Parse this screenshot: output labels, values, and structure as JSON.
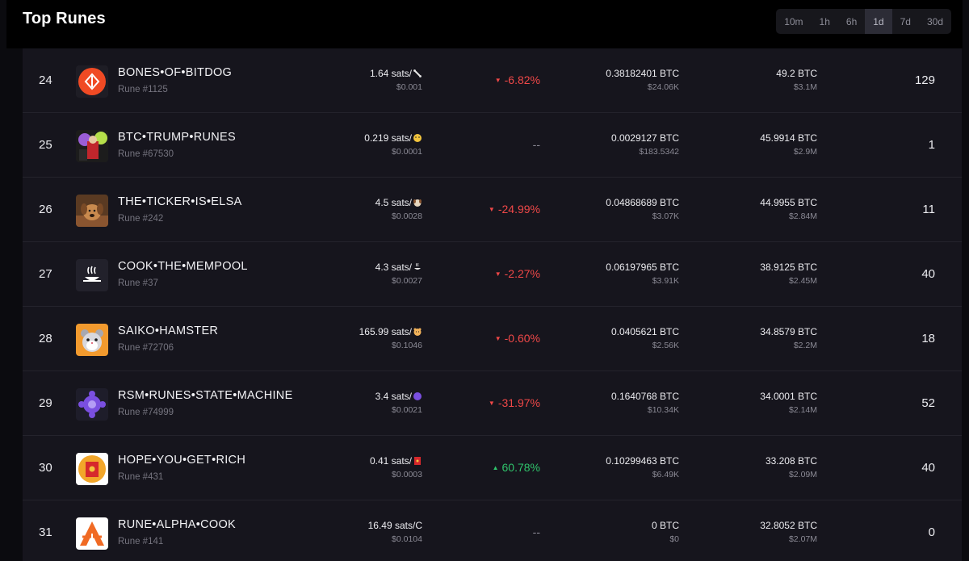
{
  "header": {
    "title": "Top Runes",
    "timeframes": [
      "10m",
      "1h",
      "6h",
      "1d",
      "7d",
      "30d"
    ],
    "active_timeframe": "1d"
  },
  "rows": [
    {
      "rank": "24",
      "name": "BONES•OF•BITDOG",
      "rune_id": "Rune #1125",
      "price": "1.64 sats/",
      "price_symbol": "bone-icon",
      "price_usd": "$0.001",
      "change": "-6.82%",
      "change_dir": "down",
      "volume": "0.38182401 BTC",
      "volume_usd": "$24.06K",
      "mcap": "49.2 BTC",
      "mcap_usd": "$3.1M",
      "sales": "129",
      "logo": "bones-of-bitdog-logo"
    },
    {
      "rank": "25",
      "name": "BTC•TRUMP•RUNES",
      "rune_id": "Rune #67530",
      "price": "0.219 sats/",
      "price_symbol": "face-emoji-icon",
      "price_usd": "$0.0001",
      "change": "--",
      "change_dir": "flat",
      "volume": "0.0029127 BTC",
      "volume_usd": "$183.5342",
      "mcap": "45.9914 BTC",
      "mcap_usd": "$2.9M",
      "sales": "1",
      "logo": "btc-trump-runes-logo"
    },
    {
      "rank": "26",
      "name": "THE•TICKER•IS•ELSA",
      "rune_id": "Rune #242",
      "price": "4.5 sats/",
      "price_symbol": "dog-emoji-icon",
      "price_usd": "$0.0028",
      "change": "-24.99%",
      "change_dir": "down",
      "volume": "0.04868689 BTC",
      "volume_usd": "$3.07K",
      "mcap": "44.9955 BTC",
      "mcap_usd": "$2.84M",
      "sales": "11",
      "logo": "the-ticker-is-elsa-logo"
    },
    {
      "rank": "27",
      "name": "COOK•THE•MEMPOOL",
      "rune_id": "Rune #37",
      "price": "4.3 sats/",
      "price_symbol": "pot-icon",
      "price_usd": "$0.0027",
      "change": "-2.27%",
      "change_dir": "down",
      "volume": "0.06197965 BTC",
      "volume_usd": "$3.91K",
      "mcap": "38.9125 BTC",
      "mcap_usd": "$2.45M",
      "sales": "40",
      "logo": "cook-the-mempool-logo"
    },
    {
      "rank": "28",
      "name": "SAIKO•HAMSTER",
      "rune_id": "Rune #72706",
      "price": "165.99 sats/",
      "price_symbol": "hamster-emoji-icon",
      "price_usd": "$0.1046",
      "change": "-0.60%",
      "change_dir": "down",
      "volume": "0.0405621 BTC",
      "volume_usd": "$2.56K",
      "mcap": "34.8579 BTC",
      "mcap_usd": "$2.2M",
      "sales": "18",
      "logo": "saiko-hamster-logo"
    },
    {
      "rank": "29",
      "name": "RSM•RUNES•STATE•MACHINE",
      "rune_id": "Rune #74999",
      "price": "3.4 sats/",
      "price_symbol": "purple-circle-icon",
      "price_usd": "$0.0021",
      "change": "-31.97%",
      "change_dir": "down",
      "volume": "0.1640768 BTC",
      "volume_usd": "$10.34K",
      "mcap": "34.0001 BTC",
      "mcap_usd": "$2.14M",
      "sales": "52",
      "logo": "rsm-runes-state-machine-logo"
    },
    {
      "rank": "30",
      "name": "HOPE•YOU•GET•RICH",
      "rune_id": "Rune #431",
      "price": "0.41 sats/",
      "price_symbol": "red-envelope-icon",
      "price_usd": "$0.0003",
      "change": "60.78%",
      "change_dir": "up",
      "volume": "0.10299463 BTC",
      "volume_usd": "$6.49K",
      "mcap": "33.208 BTC",
      "mcap_usd": "$2.09M",
      "sales": "40",
      "logo": "hope-you-get-rich-logo"
    },
    {
      "rank": "31",
      "name": "RUNE•ALPHA•COOK",
      "rune_id": "Rune #141",
      "price": "16.49 sats/C",
      "price_symbol": "",
      "price_usd": "$0.0104",
      "change": "--",
      "change_dir": "flat",
      "volume": "0 BTC",
      "volume_usd": "$0",
      "mcap": "32.8052 BTC",
      "mcap_usd": "$2.07M",
      "sales": "0",
      "logo": "rune-alpha-cook-logo"
    }
  ],
  "colors": {
    "down": "#f04848",
    "up": "#2fc36b",
    "row_bg": "#16151d",
    "page_bg": "#0b0b0f"
  }
}
